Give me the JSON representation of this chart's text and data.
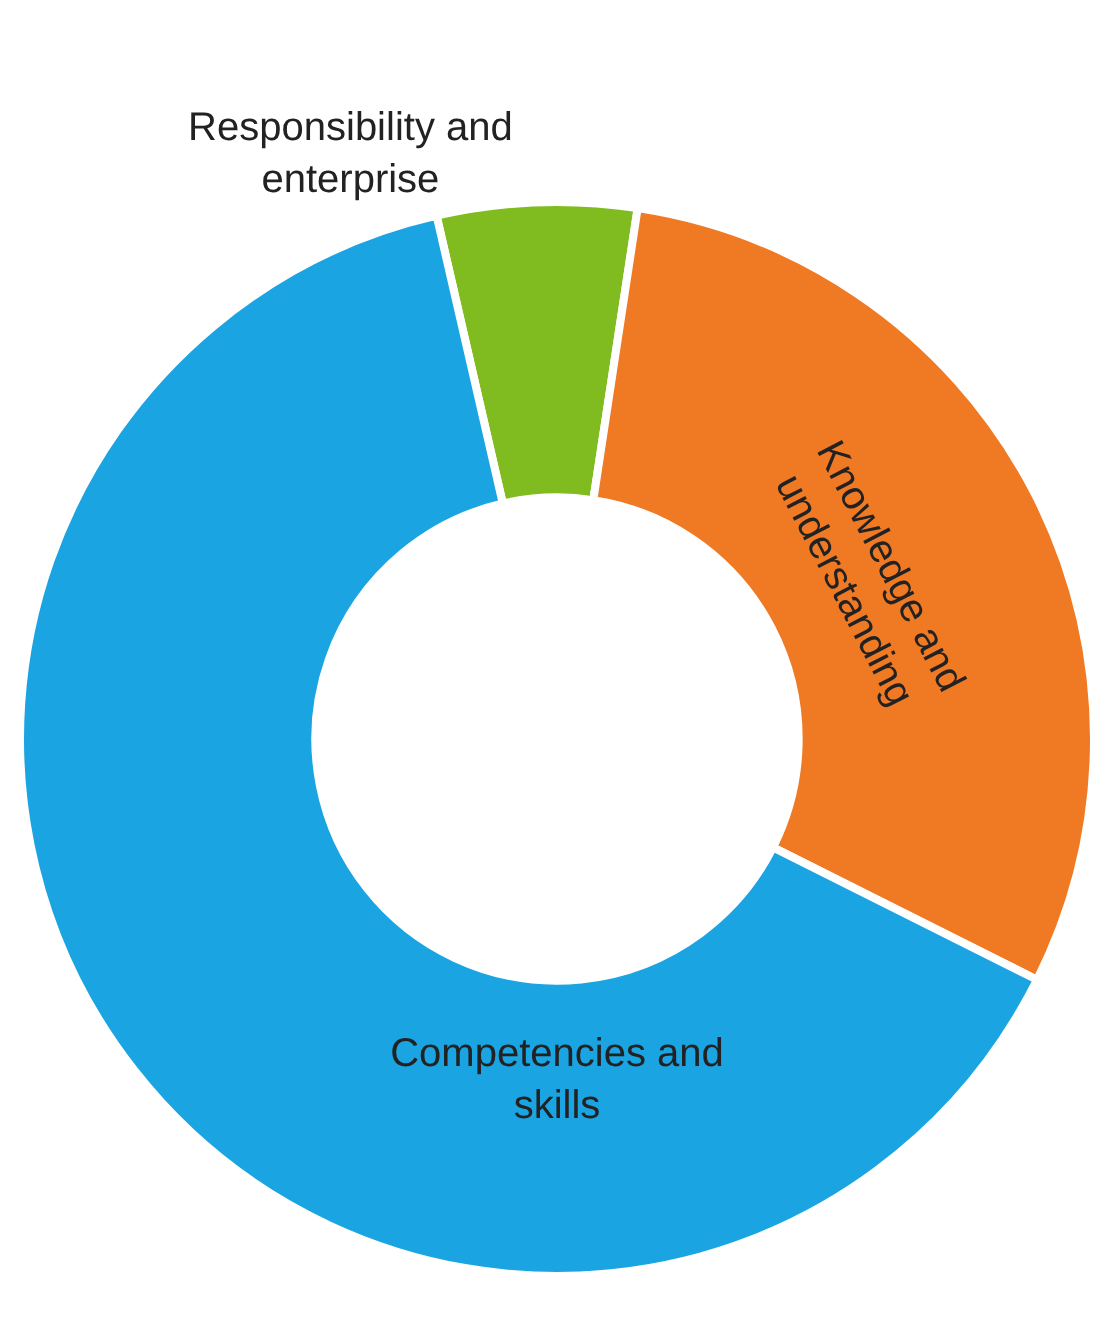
{
  "chart_data": {
    "type": "donut",
    "categories": [
      "Responsibility and enterprise",
      "Knowledge and understanding",
      "Competencies and skills"
    ],
    "values": [
      6,
      30,
      64
    ],
    "colors": [
      "#80bc1f",
      "#f07a23",
      "#1ba4e2"
    ],
    "legend": false
  }
}
